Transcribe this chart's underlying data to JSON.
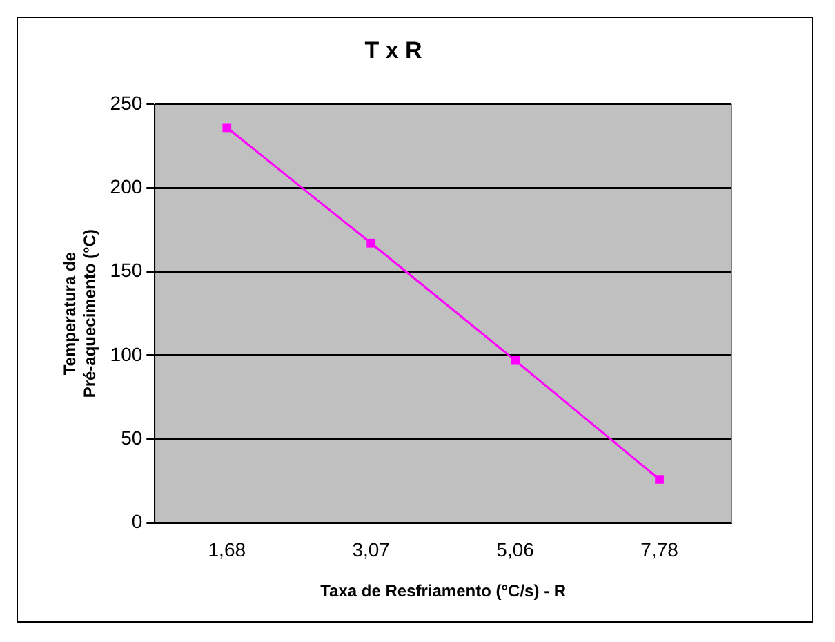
{
  "chart_data": {
    "type": "line",
    "title": "T x R",
    "xlabel": "Taxa de Resfriamento (°C/s) - R",
    "ylabel": "Temperatura de Pré-aquecimento (°C)",
    "categories": [
      "1,68",
      "3,07",
      "5,06",
      "7,78"
    ],
    "series": [
      {
        "color": "#ff00ff",
        "values": [
          236,
          167,
          97,
          26
        ]
      }
    ],
    "ylim": [
      0,
      250
    ],
    "yticks": [
      0,
      50,
      100,
      150,
      200,
      250
    ],
    "grid": "y",
    "legend": false,
    "marker": "square",
    "line_style": "solid"
  }
}
